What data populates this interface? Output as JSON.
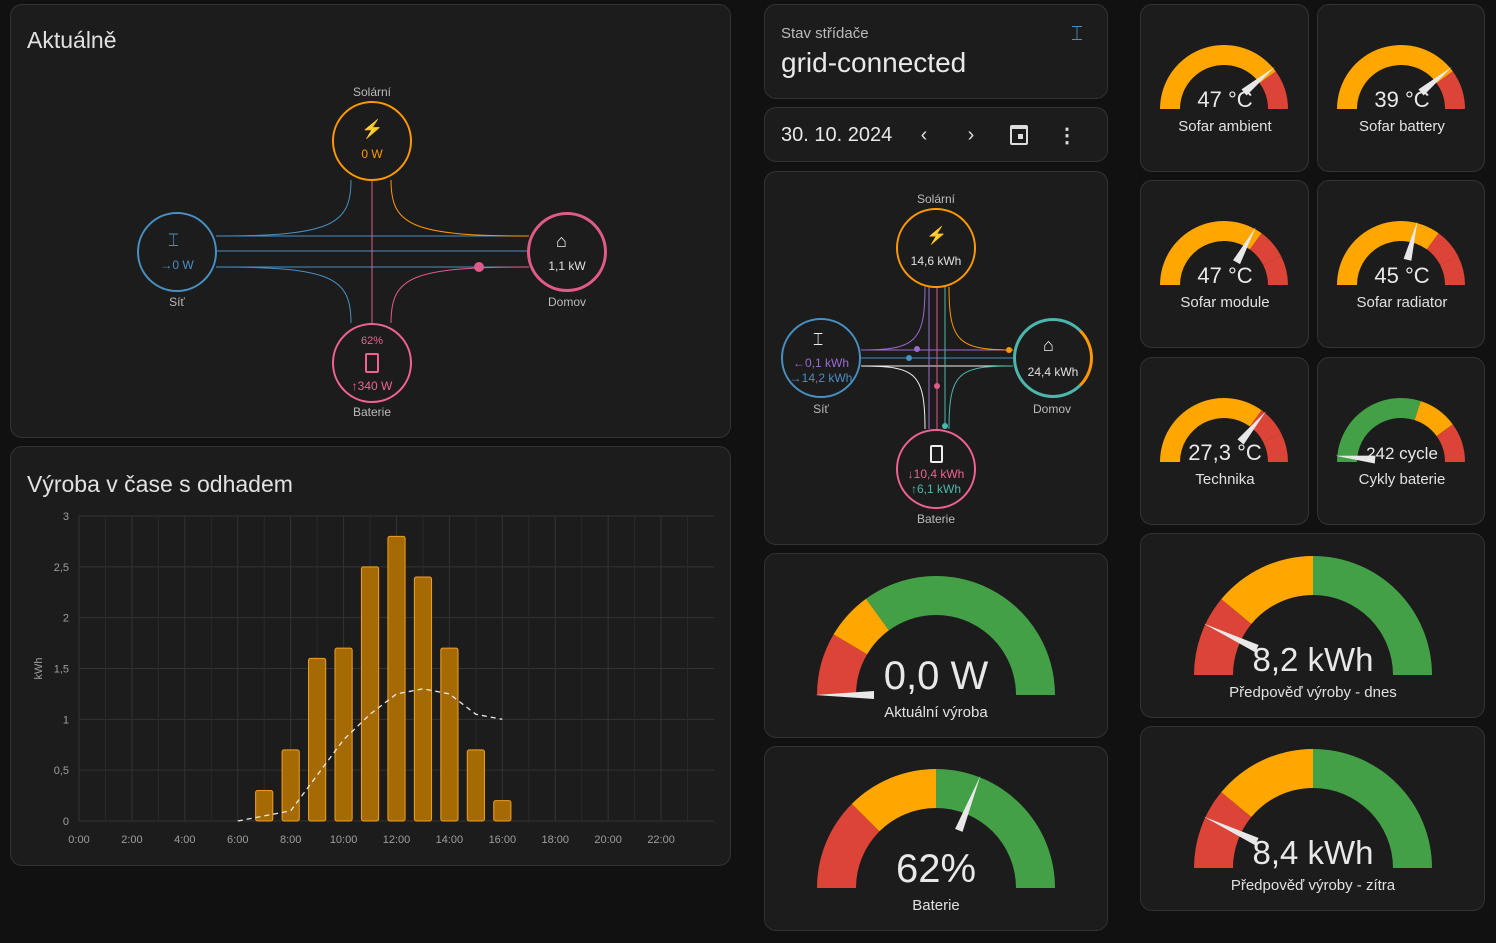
{
  "colors": {
    "solar": "#ff9800",
    "grid": "#488fc2",
    "home": "#e05a8a",
    "battery": "#f06292",
    "battery_green": "#4db6ac",
    "grid_purple": "#9b6bd3",
    "gauge_green": "#43a047",
    "gauge_yellow": "#ffa600",
    "gauge_red": "#db4437",
    "needle": "#e8e8e8"
  },
  "current": {
    "title": "Aktuálně",
    "solar": {
      "label": "Solární",
      "value": "0 W",
      "icon": "solar-power-icon"
    },
    "grid": {
      "label": "Síť",
      "value": "→0 W",
      "icon": "transmission-tower-icon"
    },
    "home": {
      "label": "Domov",
      "value": "1,1 kW",
      "icon": "home-icon"
    },
    "battery": {
      "label": "Baterie",
      "percent": "62%",
      "value": "↑340 W",
      "icon": "battery-icon"
    }
  },
  "chart": {
    "title": "Výroba v čase s odhadem",
    "ylabel": "kWh"
  },
  "chart_data": {
    "type": "bar",
    "title": "Výroba v čase s odhadem",
    "ylabel": "kWh",
    "ylim": [
      0,
      3
    ],
    "yticks": [
      "0",
      "0,5",
      "1",
      "1,5",
      "2",
      "2,5",
      "3"
    ],
    "xticks": [
      "0:00",
      "2:00",
      "4:00",
      "6:00",
      "8:00",
      "10:00",
      "12:00",
      "14:00",
      "16:00",
      "18:00",
      "20:00",
      "22:00"
    ],
    "x": [
      "7:00",
      "8:00",
      "9:00",
      "10:00",
      "11:00",
      "12:00",
      "13:00",
      "14:00",
      "15:00",
      "16:00"
    ],
    "series": [
      {
        "type": "bar",
        "values": [
          0.3,
          0.7,
          1.6,
          1.7,
          2.5,
          2.8,
          2.4,
          1.7,
          0.7,
          0.2
        ]
      },
      {
        "type": "line",
        "dashed": true,
        "x": [
          "6:00",
          "7:00",
          "8:00",
          "9:00",
          "10:00",
          "11:00",
          "12:00",
          "13:00",
          "14:00",
          "15:00",
          "16:00"
        ],
        "values": [
          0.0,
          0.05,
          0.1,
          0.45,
          0.8,
          1.05,
          1.25,
          1.3,
          1.25,
          1.05,
          1.0
        ]
      }
    ],
    "grid": true
  },
  "inverter": {
    "label": "Stav střídače",
    "status": "grid-connected",
    "icon": "transmission-tower-icon"
  },
  "date": {
    "value": "30. 10. 2024"
  },
  "energy": {
    "solar": {
      "label": "Solární",
      "value": "14,6 kWh"
    },
    "grid": {
      "label": "Síť",
      "in": "←0,1 kWh",
      "out": "→14,2 kWh"
    },
    "home": {
      "label": "Domov",
      "value": "24,4 kWh"
    },
    "battery": {
      "label": "Baterie",
      "in": "↓10,4 kWh",
      "out": "↑6,1 kWh"
    }
  },
  "gauges_mid": [
    {
      "value": "0,0 W",
      "label": "Aktuální výroba",
      "fraction": 0.0
    },
    {
      "value": "62%",
      "label": "Baterie",
      "fraction": 0.62
    }
  ],
  "gauges_small": [
    {
      "value": "47 °C",
      "label": "Sofar ambient",
      "fraction": 0.78
    },
    {
      "value": "39 °C",
      "label": "Sofar battery",
      "fraction": 0.78
    },
    {
      "value": "47 °C",
      "label": "Sofar module",
      "fraction": 0.66
    },
    {
      "value": "45 °C",
      "label": "Sofar radiator",
      "fraction": 0.58
    },
    {
      "value": "27,3 °C",
      "label": "Technika",
      "fraction": 0.72
    },
    {
      "value": "242 cycle",
      "label": "Cykly baterie",
      "fraction": 0.03
    }
  ],
  "gauges_big": [
    {
      "value": "8,2 kWh",
      "label": "Předpověď výroby - dnes",
      "fraction": 0.14
    },
    {
      "value": "8,4 kWh",
      "label": "Předpověď výroby - zítra",
      "fraction": 0.14
    }
  ]
}
